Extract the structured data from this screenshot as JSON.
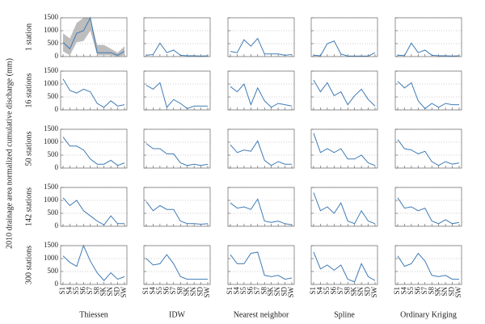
{
  "ylabel": "2010 drainage area normalized cumulative discharge (mm)",
  "row_labels": [
    "1 station",
    "16 stations",
    "50 stations",
    "142 stations",
    "300 stations"
  ],
  "column_labels": [
    "Thiessen",
    "IDW",
    "Nearest neighbor",
    "Spline",
    "Ordinary Kriging"
  ],
  "chart_data": [
    {
      "type": "line",
      "categories": [
        "S1",
        "S4",
        "S5",
        "S6",
        "S7",
        "S8",
        "SK",
        "SN",
        "SD",
        "SW"
      ],
      "values": [
        550,
        300,
        900,
        1000,
        1500,
        150,
        150,
        150,
        50,
        200
      ],
      "band": {
        "lower": [
          200,
          50,
          550,
          600,
          1000,
          50,
          50,
          50,
          0,
          50
        ],
        "upper": [
          900,
          700,
          1300,
          1500,
          1500,
          450,
          450,
          300,
          150,
          400
        ],
        "color": "#bdbdbd"
      },
      "ylim": [
        0,
        1500
      ],
      "yticks": [
        0,
        500,
        1000,
        1500
      ],
      "grid": true,
      "color": "#3f7bb5"
    },
    {
      "type": "line",
      "categories": [
        "S1",
        "S4",
        "S5",
        "S6",
        "S7",
        "S8",
        "SK",
        "SN",
        "SD",
        "SW"
      ],
      "values": [
        50,
        80,
        520,
        150,
        250,
        50,
        30,
        30,
        20,
        30
      ],
      "ylim": [
        0,
        1500
      ],
      "yticks": [
        0,
        500,
        1000,
        1500
      ],
      "grid": true,
      "color": "#3f7bb5"
    },
    {
      "type": "line",
      "categories": [
        "S1",
        "S4",
        "S5",
        "S6",
        "S7",
        "S8",
        "SK",
        "SN",
        "SD",
        "SW"
      ],
      "values": [
        200,
        150,
        650,
        400,
        700,
        100,
        100,
        100,
        50,
        80
      ],
      "ylim": [
        0,
        1500
      ],
      "yticks": [
        0,
        500,
        1000,
        1500
      ],
      "grid": true,
      "color": "#3f7bb5"
    },
    {
      "type": "line",
      "categories": [
        "S1",
        "S4",
        "S5",
        "S6",
        "S7",
        "S8",
        "SK",
        "SN",
        "SD",
        "SW"
      ],
      "values": [
        50,
        30,
        500,
        600,
        100,
        20,
        20,
        20,
        20,
        150
      ],
      "ylim": [
        0,
        1500
      ],
      "yticks": [
        0,
        500,
        1000,
        1500
      ],
      "grid": true,
      "color": "#3f7bb5"
    },
    {
      "type": "line",
      "categories": [
        "S1",
        "S4",
        "S5",
        "S6",
        "S7",
        "S8",
        "SK",
        "SN",
        "SD",
        "SW"
      ],
      "values": [
        50,
        40,
        520,
        150,
        250,
        50,
        30,
        30,
        20,
        30
      ],
      "ylim": [
        0,
        1500
      ],
      "yticks": [
        0,
        500,
        1000,
        1500
      ],
      "grid": true,
      "color": "#3f7bb5"
    },
    {
      "type": "line",
      "categories": [
        "S1",
        "S4",
        "S5",
        "S6",
        "S7",
        "S8",
        "SK",
        "SN",
        "SD",
        "SW"
      ],
      "values": [
        1200,
        750,
        650,
        800,
        700,
        250,
        100,
        350,
        150,
        200
      ],
      "ylim": [
        0,
        1500
      ],
      "yticks": [
        0,
        500,
        1000,
        1500
      ],
      "grid": true,
      "color": "#3f7bb5"
    },
    {
      "type": "line",
      "categories": [
        "S1",
        "S4",
        "S5",
        "S6",
        "S7",
        "S8",
        "SK",
        "SN",
        "SD",
        "SW"
      ],
      "values": [
        950,
        800,
        1050,
        100,
        400,
        250,
        50,
        150,
        150,
        150
      ],
      "ylim": [
        0,
        1500
      ],
      "yticks": [
        0,
        500,
        1000,
        1500
      ],
      "grid": true,
      "color": "#3f7bb5"
    },
    {
      "type": "line",
      "categories": [
        "S1",
        "S4",
        "S5",
        "S6",
        "S7",
        "S8",
        "SK",
        "SN",
        "SD",
        "SW"
      ],
      "values": [
        900,
        700,
        1000,
        200,
        850,
        350,
        100,
        250,
        200,
        150
      ],
      "ylim": [
        0,
        1500
      ],
      "yticks": [
        0,
        500,
        1000,
        1500
      ],
      "grid": true,
      "color": "#3f7bb5"
    },
    {
      "type": "line",
      "categories": [
        "S1",
        "S4",
        "S5",
        "S6",
        "S7",
        "S8",
        "SK",
        "SN",
        "SD",
        "SW"
      ],
      "values": [
        1150,
        700,
        1050,
        550,
        700,
        200,
        550,
        800,
        400,
        150
      ],
      "ylim": [
        0,
        1500
      ],
      "yticks": [
        0,
        500,
        1000,
        1500
      ],
      "grid": true,
      "color": "#3f7bb5"
    },
    {
      "type": "line",
      "categories": [
        "S1",
        "S4",
        "S5",
        "S6",
        "S7",
        "S8",
        "SK",
        "SN",
        "SD",
        "SW"
      ],
      "values": [
        1100,
        850,
        1050,
        350,
        50,
        250,
        100,
        250,
        200,
        200
      ],
      "ylim": [
        0,
        1500
      ],
      "yticks": [
        0,
        500,
        1000,
        1500
      ],
      "grid": true,
      "color": "#3f7bb5"
    },
    {
      "type": "line",
      "categories": [
        "S1",
        "S4",
        "S5",
        "S6",
        "S7",
        "S8",
        "SK",
        "SN",
        "SD",
        "SW"
      ],
      "values": [
        1200,
        850,
        850,
        700,
        350,
        150,
        150,
        300,
        100,
        200
      ],
      "ylim": [
        0,
        1500
      ],
      "yticks": [
        0,
        500,
        1000,
        1500
      ],
      "grid": true,
      "color": "#3f7bb5"
    },
    {
      "type": "line",
      "categories": [
        "S1",
        "S4",
        "S5",
        "S6",
        "S7",
        "S8",
        "SK",
        "SN",
        "SD",
        "SW"
      ],
      "values": [
        950,
        750,
        750,
        550,
        550,
        200,
        100,
        150,
        100,
        150
      ],
      "ylim": [
        0,
        1500
      ],
      "yticks": [
        0,
        500,
        1000,
        1500
      ],
      "grid": true,
      "color": "#3f7bb5"
    },
    {
      "type": "line",
      "categories": [
        "S1",
        "S4",
        "S5",
        "S6",
        "S7",
        "S8",
        "SK",
        "SN",
        "SD",
        "SW"
      ],
      "values": [
        900,
        600,
        700,
        650,
        1050,
        300,
        100,
        250,
        150,
        150
      ],
      "ylim": [
        0,
        1500
      ],
      "yticks": [
        0,
        500,
        1000,
        1500
      ],
      "grid": true,
      "color": "#3f7bb5"
    },
    {
      "type": "line",
      "categories": [
        "S1",
        "S4",
        "S5",
        "S6",
        "S7",
        "S8",
        "SK",
        "SN",
        "SD",
        "SW"
      ],
      "values": [
        1350,
        600,
        750,
        600,
        750,
        350,
        350,
        500,
        200,
        100
      ],
      "ylim": [
        0,
        1500
      ],
      "yticks": [
        0,
        500,
        1000,
        1500
      ],
      "grid": true,
      "color": "#3f7bb5"
    },
    {
      "type": "line",
      "categories": [
        "S1",
        "S4",
        "S5",
        "S6",
        "S7",
        "S8",
        "SK",
        "SN",
        "SD",
        "SW"
      ],
      "values": [
        1100,
        750,
        700,
        550,
        650,
        250,
        100,
        250,
        150,
        200
      ],
      "ylim": [
        0,
        1500
      ],
      "yticks": [
        0,
        500,
        1000,
        1500
      ],
      "grid": true,
      "color": "#3f7bb5"
    },
    {
      "type": "line",
      "categories": [
        "S1",
        "S4",
        "S5",
        "S6",
        "S7",
        "S8",
        "SK",
        "SN",
        "SD",
        "SW"
      ],
      "values": [
        1100,
        800,
        1000,
        600,
        400,
        200,
        50,
        400,
        100,
        100
      ],
      "ylim": [
        0,
        1500
      ],
      "yticks": [
        0,
        500,
        1000,
        1500
      ],
      "grid": true,
      "color": "#3f7bb5"
    },
    {
      "type": "line",
      "categories": [
        "S1",
        "S4",
        "S5",
        "S6",
        "S7",
        "S8",
        "SK",
        "SN",
        "SD",
        "SW"
      ],
      "values": [
        950,
        600,
        800,
        650,
        650,
        200,
        100,
        100,
        80,
        100
      ],
      "ylim": [
        0,
        1500
      ],
      "yticks": [
        0,
        500,
        1000,
        1500
      ],
      "grid": true,
      "color": "#3f7bb5"
    },
    {
      "type": "line",
      "categories": [
        "S1",
        "S4",
        "S5",
        "S6",
        "S7",
        "S8",
        "SK",
        "SN",
        "SD",
        "SW"
      ],
      "values": [
        900,
        700,
        750,
        650,
        1050,
        200,
        150,
        200,
        100,
        50
      ],
      "ylim": [
        0,
        1500
      ],
      "yticks": [
        0,
        500,
        1000,
        1500
      ],
      "grid": true,
      "color": "#3f7bb5"
    },
    {
      "type": "line",
      "categories": [
        "S1",
        "S4",
        "S5",
        "S6",
        "S7",
        "S8",
        "SK",
        "SN",
        "SD",
        "SW"
      ],
      "values": [
        1300,
        600,
        750,
        500,
        900,
        200,
        100,
        600,
        200,
        100
      ],
      "ylim": [
        0,
        1500
      ],
      "yticks": [
        0,
        500,
        1000,
        1500
      ],
      "grid": true,
      "color": "#3f7bb5"
    },
    {
      "type": "line",
      "categories": [
        "S1",
        "S4",
        "S5",
        "S6",
        "S7",
        "S8",
        "SK",
        "SN",
        "SD",
        "SW"
      ],
      "values": [
        1100,
        700,
        750,
        600,
        700,
        200,
        100,
        250,
        100,
        150
      ],
      "ylim": [
        0,
        1500
      ],
      "yticks": [
        0,
        500,
        1000,
        1500
      ],
      "grid": true,
      "color": "#3f7bb5"
    },
    {
      "type": "line",
      "categories": [
        "S1",
        "S4",
        "S5",
        "S6",
        "S7",
        "S8",
        "SK",
        "SN",
        "SD",
        "SW"
      ],
      "values": [
        1100,
        850,
        700,
        1500,
        900,
        450,
        150,
        450,
        200,
        300
      ],
      "ylim": [
        0,
        1500
      ],
      "yticks": [
        0,
        500,
        1000,
        1500
      ],
      "grid": true,
      "color": "#3f7bb5"
    },
    {
      "type": "line",
      "categories": [
        "S1",
        "S4",
        "S5",
        "S6",
        "S7",
        "S8",
        "SK",
        "SN",
        "SD",
        "SW"
      ],
      "values": [
        1000,
        750,
        800,
        1150,
        800,
        300,
        200,
        200,
        200,
        200
      ],
      "ylim": [
        0,
        1500
      ],
      "yticks": [
        0,
        500,
        1000,
        1500
      ],
      "grid": true,
      "color": "#3f7bb5"
    },
    {
      "type": "line",
      "categories": [
        "S1",
        "S4",
        "S5",
        "S6",
        "S7",
        "S8",
        "SK",
        "SN",
        "SD",
        "SW"
      ],
      "values": [
        1150,
        800,
        800,
        1200,
        1250,
        350,
        300,
        350,
        200,
        250
      ],
      "ylim": [
        0,
        1500
      ],
      "yticks": [
        0,
        500,
        1000,
        1500
      ],
      "grid": true,
      "color": "#3f7bb5"
    },
    {
      "type": "line",
      "categories": [
        "S1",
        "S4",
        "S5",
        "S6",
        "S7",
        "S8",
        "SK",
        "SN",
        "SD",
        "SW"
      ],
      "values": [
        1250,
        600,
        750,
        550,
        750,
        200,
        100,
        800,
        300,
        150
      ],
      "ylim": [
        0,
        1500
      ],
      "yticks": [
        0,
        500,
        1000,
        1500
      ],
      "grid": true,
      "color": "#3f7bb5"
    },
    {
      "type": "line",
      "categories": [
        "S1",
        "S4",
        "S5",
        "S6",
        "S7",
        "S8",
        "SK",
        "SN",
        "SD",
        "SW"
      ],
      "values": [
        1100,
        700,
        800,
        1200,
        900,
        350,
        300,
        350,
        200,
        200
      ],
      "ylim": [
        0,
        1500
      ],
      "yticks": [
        0,
        500,
        1000,
        1500
      ],
      "grid": true,
      "color": "#3f7bb5"
    }
  ]
}
